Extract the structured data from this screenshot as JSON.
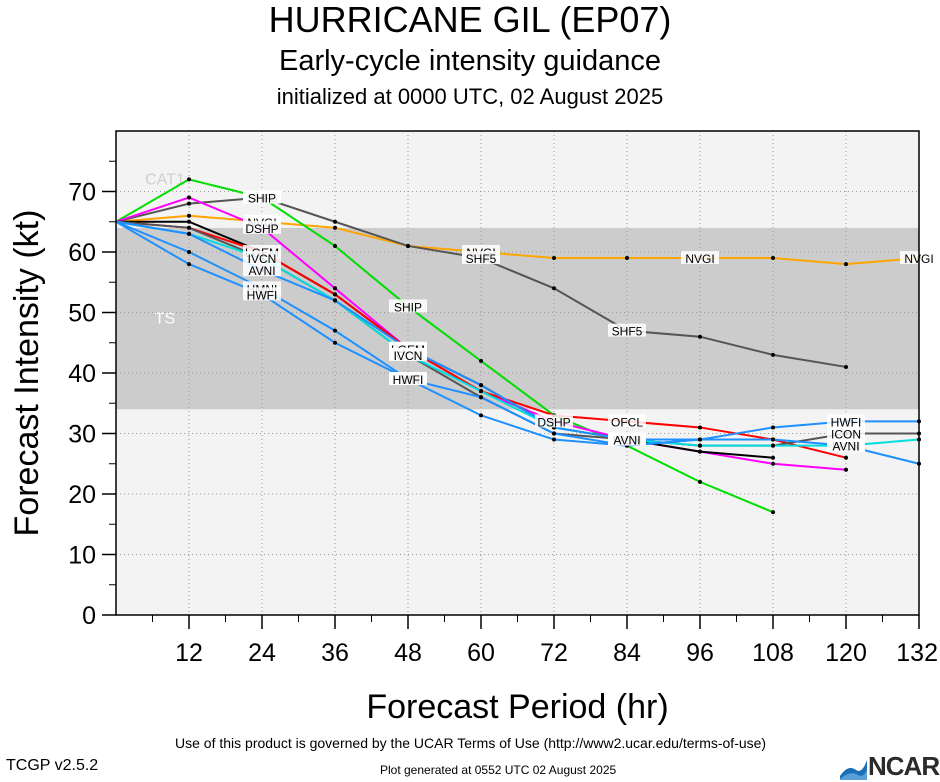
{
  "header": {
    "title": "HURRICANE GIL (EP07)",
    "subtitle": "Early-cycle intensity guidance",
    "initialized": "initialized at 0000 UTC, 02 August 2025"
  },
  "footer": {
    "terms": "Use of this product is governed by the UCAR Terms of Use (http://www2.ucar.edu/terms-of-use)",
    "version": "TCGP v2.5.2",
    "generated": "Plot generated at 0552 UTC   02 August 2025",
    "logo": "NCAR",
    "logo_icon": "ncar-wave-icon"
  },
  "chart_data": {
    "type": "line",
    "xlabel": "Forecast Period (hr)",
    "ylabel": "Forecast Intensity (kt)",
    "xlim": [
      0,
      132
    ],
    "ylim": [
      0,
      80
    ],
    "xticks": [
      12,
      24,
      36,
      48,
      60,
      72,
      84,
      96,
      108,
      120,
      132
    ],
    "yticks": [
      0,
      10,
      20,
      30,
      40,
      50,
      60,
      70
    ],
    "bands": [
      {
        "label": "TS",
        "from": 34,
        "to": 64,
        "color": "#cccccc"
      },
      {
        "label": "CAT1",
        "from": 64,
        "to": 80,
        "color": "#f3f3f3"
      }
    ],
    "series": [
      {
        "name": "NVGI",
        "color": "#ffa500",
        "labels_at": [
          24,
          60,
          96,
          132
        ],
        "points": [
          [
            0,
            65
          ],
          [
            12,
            66
          ],
          [
            24,
            65
          ],
          [
            36,
            64
          ],
          [
            48,
            61
          ],
          [
            60,
            60
          ],
          [
            72,
            59
          ],
          [
            84,
            59
          ],
          [
            96,
            59
          ],
          [
            108,
            59
          ],
          [
            120,
            58
          ],
          [
            132,
            59
          ]
        ]
      },
      {
        "name": "SHF5",
        "color": "#555555",
        "labels_at": [
          24,
          60,
          84
        ],
        "points": [
          [
            0,
            65
          ],
          [
            12,
            68
          ],
          [
            24,
            69
          ],
          [
            36,
            65
          ],
          [
            48,
            61
          ],
          [
            60,
            59
          ],
          [
            72,
            54
          ],
          [
            84,
            47
          ],
          [
            96,
            46
          ],
          [
            108,
            43
          ],
          [
            120,
            41
          ]
        ]
      },
      {
        "name": "SHIP",
        "color": "#00dd00",
        "labels_at": [
          24,
          48
        ],
        "points": [
          [
            0,
            65
          ],
          [
            12,
            72
          ],
          [
            24,
            69
          ],
          [
            36,
            61
          ],
          [
            48,
            51
          ],
          [
            60,
            42
          ],
          [
            72,
            33
          ],
          [
            84,
            28
          ],
          [
            96,
            22
          ],
          [
            108,
            17
          ]
        ]
      },
      {
        "name": "DSHP",
        "color": "#ff00ff",
        "labels_at": [
          24,
          48,
          72
        ],
        "points": [
          [
            0,
            65
          ],
          [
            12,
            69
          ],
          [
            24,
            64
          ],
          [
            36,
            54
          ],
          [
            48,
            44
          ],
          [
            60,
            37
          ],
          [
            72,
            32
          ],
          [
            84,
            29
          ],
          [
            96,
            27
          ],
          [
            108,
            25
          ],
          [
            120,
            24
          ]
        ]
      },
      {
        "name": "LGEM",
        "color": "#000000",
        "labels_at": [
          24,
          48
        ],
        "points": [
          [
            0,
            65
          ],
          [
            12,
            65
          ],
          [
            24,
            60
          ],
          [
            36,
            53
          ],
          [
            48,
            44
          ],
          [
            60,
            38
          ],
          [
            72,
            31
          ],
          [
            84,
            29
          ],
          [
            96,
            27
          ],
          [
            108,
            26
          ]
        ]
      },
      {
        "name": "OFCL",
        "color": "#ff0000",
        "labels_at": [
          84
        ],
        "points": [
          [
            0,
            65
          ],
          [
            12,
            64
          ],
          [
            24,
            60
          ],
          [
            36,
            53
          ],
          [
            48,
            44
          ],
          [
            60,
            37
          ],
          [
            72,
            33
          ],
          [
            84,
            32
          ],
          [
            96,
            31
          ],
          [
            108,
            29
          ],
          [
            120,
            26
          ]
        ]
      },
      {
        "name": "ICON",
        "color": "#555555",
        "labels_at": [
          48,
          84,
          120
        ],
        "points": [
          [
            0,
            65
          ],
          [
            12,
            64
          ],
          [
            24,
            59
          ],
          [
            36,
            52
          ],
          [
            48,
            43
          ],
          [
            60,
            36
          ],
          [
            72,
            30
          ],
          [
            84,
            29
          ],
          [
            96,
            28
          ],
          [
            108,
            28
          ],
          [
            120,
            30
          ],
          [
            132,
            30
          ]
        ]
      },
      {
        "name": "IVCN",
        "color": "#00dddd",
        "labels_at": [
          24,
          48,
          84,
          120
        ],
        "points": [
          [
            0,
            65
          ],
          [
            12,
            63
          ],
          [
            24,
            59
          ],
          [
            36,
            52
          ],
          [
            48,
            43
          ],
          [
            60,
            37
          ],
          [
            72,
            31
          ],
          [
            84,
            29
          ],
          [
            96,
            28
          ],
          [
            108,
            28
          ],
          [
            120,
            28
          ],
          [
            132,
            29
          ]
        ]
      },
      {
        "name": "AVNI",
        "color": "#1e90ff",
        "labels_at": [
          24,
          84,
          120
        ],
        "points": [
          [
            0,
            65
          ],
          [
            12,
            63
          ],
          [
            24,
            57
          ],
          [
            36,
            52
          ],
          [
            48,
            44
          ],
          [
            60,
            38
          ],
          [
            72,
            31
          ],
          [
            84,
            29
          ],
          [
            96,
            29
          ],
          [
            108,
            29
          ],
          [
            120,
            28
          ],
          [
            132,
            25
          ]
        ]
      },
      {
        "name": "HMNI",
        "color": "#1e90ff",
        "labels_at": [
          24,
          48
        ],
        "points": [
          [
            0,
            65
          ],
          [
            12,
            60
          ],
          [
            24,
            54
          ],
          [
            36,
            47
          ],
          [
            48,
            39
          ],
          [
            60,
            36
          ],
          [
            72,
            30
          ],
          [
            84,
            28
          ],
          [
            96,
            29
          ]
        ]
      },
      {
        "name": "HWFI",
        "color": "#1e90ff",
        "labels_at": [
          24,
          48,
          120
        ],
        "points": [
          [
            0,
            65
          ],
          [
            12,
            58
          ],
          [
            24,
            53
          ],
          [
            36,
            45
          ],
          [
            48,
            39
          ],
          [
            60,
            33
          ],
          [
            72,
            29
          ],
          [
            84,
            28
          ],
          [
            96,
            29
          ],
          [
            108,
            31
          ],
          [
            120,
            32
          ],
          [
            132,
            32
          ]
        ]
      }
    ]
  }
}
